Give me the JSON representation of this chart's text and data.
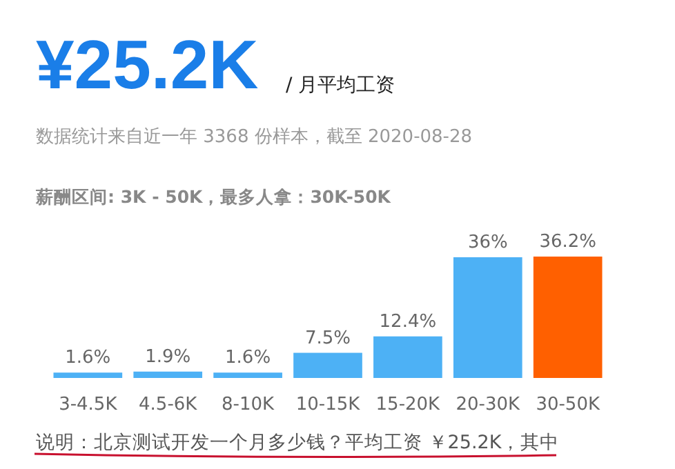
{
  "chart_data": {
    "type": "bar",
    "title": "¥25.2K",
    "subtitle": "/ 月平均工资",
    "annotations": [
      "数据统计来自近一年 3368 份样本，截至 2020-08-28",
      "薪酬区间: 3K - 50K，最多人拿：30K-50K",
      "说明：北京测试开发一个月多少钱？平均工资 ￥25.2K，其中"
    ],
    "categories": [
      "3-4.5K",
      "4.5-6K",
      "8-10K",
      "10-15K",
      "15-20K",
      "20-30K",
      "30-50K"
    ],
    "values": [
      1.6,
      1.9,
      1.6,
      7.5,
      12.4,
      36,
      36.2
    ],
    "value_labels": [
      "1.6%",
      "1.9%",
      "1.6%",
      "7.5%",
      "12.4%",
      "36%",
      "36.2%"
    ],
    "colors": [
      "#4db1f5",
      "#4db1f5",
      "#4db1f5",
      "#4db1f5",
      "#4db1f5",
      "#4db1f5",
      "#ff6000"
    ]
  }
}
